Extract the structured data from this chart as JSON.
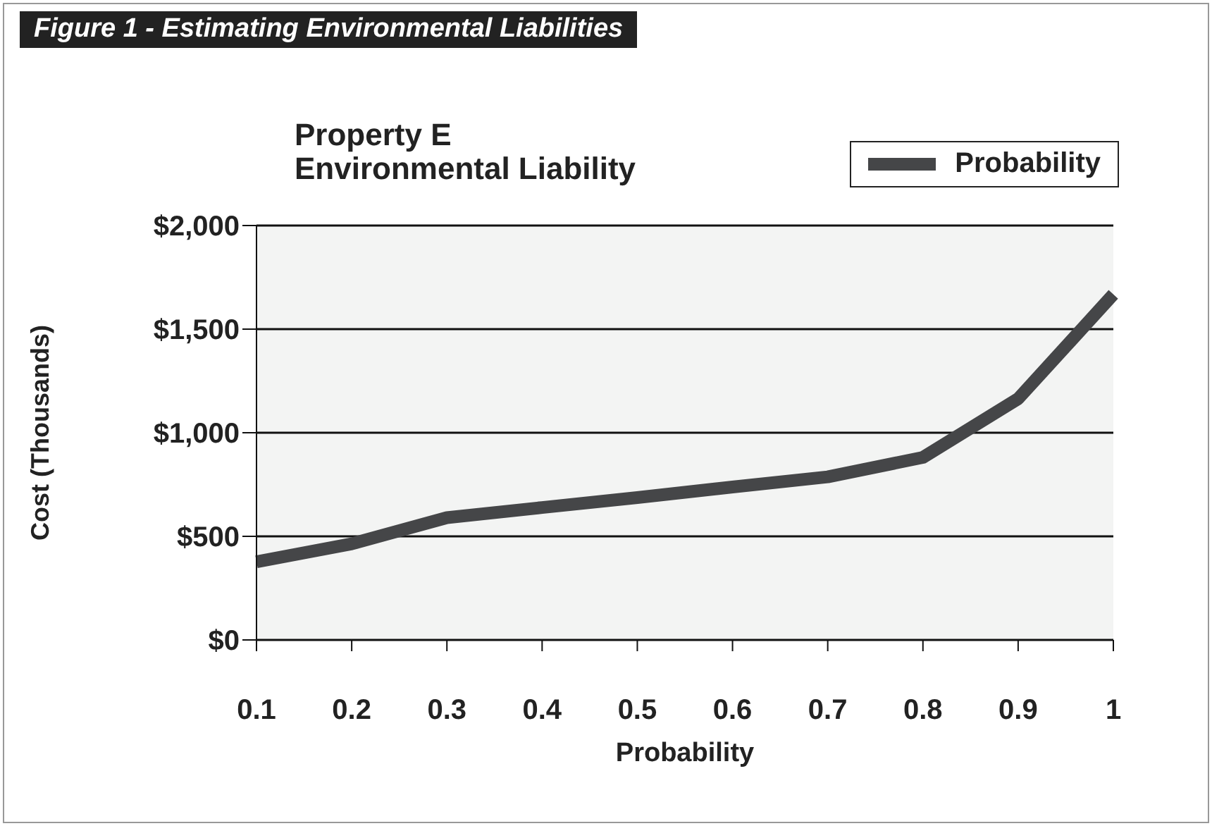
{
  "chart_data": {
    "type": "line",
    "title": "Figure 1 - Estimating Environmental Liabilities",
    "subtitle": "Property E\nEnvironmental Liability",
    "xlabel": "Probability",
    "ylabel": "Cost (Thousands)",
    "categories": [
      "0.1",
      "0.2",
      "0.3",
      "0.4",
      "0.5",
      "0.6",
      "0.7",
      "0.8",
      "0.9",
      "1"
    ],
    "series": [
      {
        "name": "Probability",
        "color": "#454648",
        "values": [
          377,
          464,
          590,
          639,
          687,
          738,
          787,
          881,
          1164,
          1668
        ]
      }
    ],
    "ylim": [
      0,
      2000
    ],
    "yticks": [
      {
        "value": 0,
        "label": "$0"
      },
      {
        "value": 500,
        "label": "$500"
      },
      {
        "value": 1000,
        "label": "$1,000"
      },
      {
        "value": 1500,
        "label": "$1,500"
      },
      {
        "value": 2000,
        "label": "$2,000"
      }
    ],
    "grid": "y",
    "legend": "top right"
  }
}
